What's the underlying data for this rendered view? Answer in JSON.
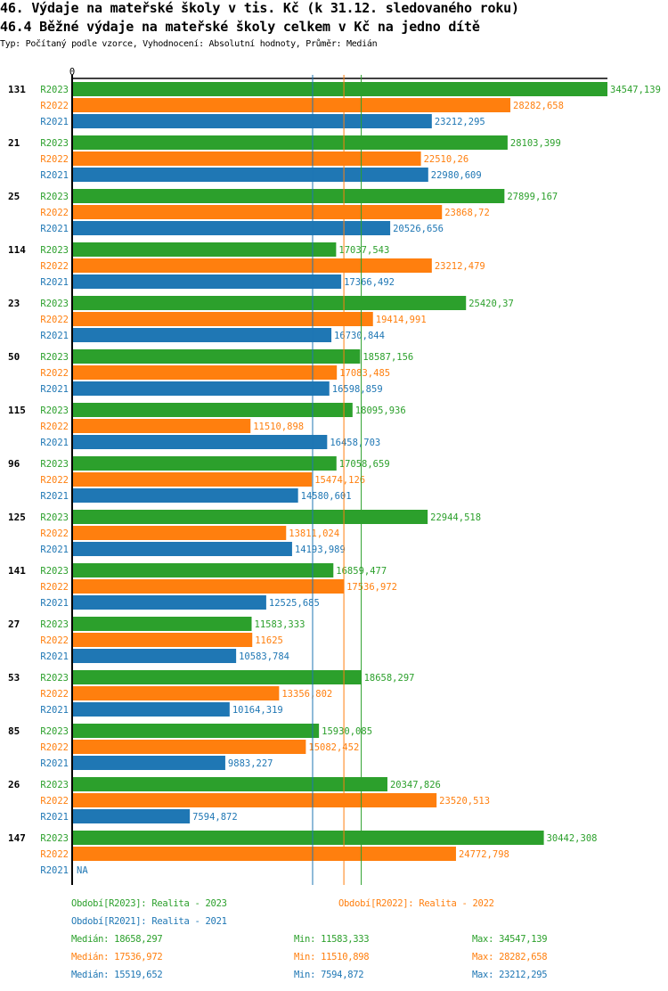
{
  "header": {
    "title": "46. Výdaje na mateřské školy v tis. Kč (k 31.12. sledovaného roku)",
    "subtitle": "46.4 Běžné výdaje na mateřské školy celkem v Kč na jedno dítě",
    "info": "Typ: Počítaný podle vzorce, Vyhodnocení: Absolutní hodnoty, Průměr: Medián"
  },
  "colors": {
    "R2023": "#2ca02c",
    "R2022": "#ff7f0e",
    "R2021": "#1f77b4"
  },
  "chart_data": {
    "type": "bar",
    "orientation": "horizontal",
    "title": "46.4 Běžné výdaje na mateřské školy celkem v Kč na jedno dítě",
    "xlabel": "",
    "ylabel": "",
    "x_tick_labels": [
      "0"
    ],
    "xlim": [
      0,
      34547.139
    ],
    "grid": false,
    "categories": [
      "131",
      "21",
      "25",
      "114",
      "23",
      "50",
      "115",
      "96",
      "125",
      "141",
      "27",
      "53",
      "85",
      "26",
      "147"
    ],
    "series": [
      {
        "name": "R2023",
        "values": [
          34547.139,
          28103.399,
          27899.167,
          17037.543,
          25420.37,
          18587.156,
          18095.936,
          17058.659,
          22944.518,
          16859.477,
          11583.333,
          18658.297,
          15930.085,
          20347.826,
          30442.308
        ],
        "labels": [
          "34547,139",
          "28103,399",
          "27899,167",
          "17037,543",
          "25420,37",
          "18587,156",
          "18095,936",
          "17058,659",
          "22944,518",
          "16859,477",
          "11583,333",
          "18658,297",
          "15930,085",
          "20347,826",
          "30442,308"
        ]
      },
      {
        "name": "R2022",
        "values": [
          28282.658,
          22510.26,
          23868.72,
          23212.479,
          19414.991,
          17083.485,
          11510.898,
          15474.126,
          13811.024,
          17536.972,
          11625,
          13356.802,
          15082.452,
          23520.513,
          24772.798
        ],
        "labels": [
          "28282,658",
          "22510,26",
          "23868,72",
          "23212,479",
          "19414,991",
          "17083,485",
          "11510,898",
          "15474,126",
          "13811,024",
          "17536,972",
          "11625",
          "13356,802",
          "15082,452",
          "23520,513",
          "24772,798"
        ]
      },
      {
        "name": "R2021",
        "values": [
          23212.295,
          22980.609,
          20526.656,
          17366.492,
          16730.844,
          16598.859,
          16458.703,
          14580.601,
          14193.989,
          12525.685,
          10583.784,
          10164.319,
          9883.227,
          7594.872,
          null
        ],
        "labels": [
          "23212,295",
          "22980,609",
          "20526,656",
          "17366,492",
          "16730,844",
          "16598,859",
          "16458,703",
          "14580,601",
          "14193,989",
          "12525,685",
          "10583,784",
          "10164,319",
          "9883,227",
          "7594,872",
          "NA"
        ]
      }
    ],
    "reference_lines": [
      {
        "series": "R2021",
        "type": "median",
        "value": 15519.652
      },
      {
        "series": "R2022",
        "type": "median",
        "value": 17536.972
      },
      {
        "series": "R2023",
        "type": "median",
        "value": 18658.297
      }
    ],
    "legend": {
      "placement": "bottom",
      "entries": [
        {
          "key": "R2023",
          "text": "Období[R2023]: Realita - 2023"
        },
        {
          "key": "R2022",
          "text": "Období[R2022]: Realita - 2022"
        },
        {
          "key": "R2021",
          "text": "Období[R2021]: Realita - 2021"
        }
      ]
    },
    "stats": [
      {
        "key": "R2023",
        "median": "Medián: 18658,297",
        "min": "Min: 11583,333",
        "max": "Max: 34547,139"
      },
      {
        "key": "R2022",
        "median": "Medián: 17536,972",
        "min": "Min: 11510,898",
        "max": "Max: 28282,658"
      },
      {
        "key": "R2021",
        "median": "Medián: 15519,652",
        "min": "Min: 7594,872",
        "max": "Max: 23212,295"
      }
    ]
  }
}
